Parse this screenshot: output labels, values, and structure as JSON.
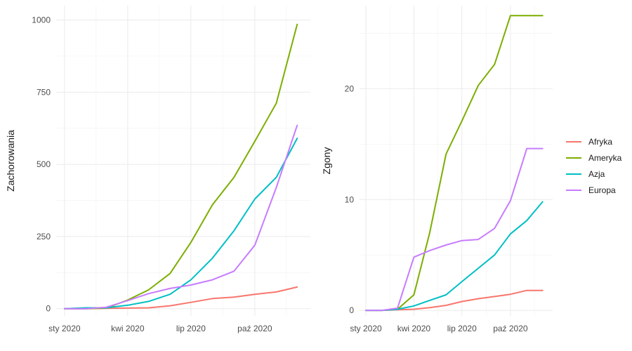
{
  "chart_data": [
    {
      "type": "line",
      "ylabel": "Zachorowania",
      "xlabel": "",
      "x_dates": [
        "2020-01-01",
        "2020-02-01",
        "2020-03-01",
        "2020-04-01",
        "2020-05-01",
        "2020-06-01",
        "2020-07-01",
        "2020-08-01",
        "2020-09-01",
        "2020-10-01",
        "2020-11-01",
        "2020-12-01"
      ],
      "x_ticks": [
        {
          "date": "2020-01-01",
          "label": "sty 2020"
        },
        {
          "date": "2020-04-01",
          "label": "kwi 2020"
        },
        {
          "date": "2020-07-01",
          "label": "lip 2020"
        },
        {
          "date": "2020-10-01",
          "label": "paź 2020"
        }
      ],
      "y_ticks": [
        0,
        250,
        500,
        750,
        1000
      ],
      "ylim": [
        -25,
        1050
      ],
      "grid": true,
      "series": [
        {
          "name": "Afryka",
          "values": [
            0,
            0,
            1,
            2,
            3,
            10,
            22,
            35,
            40,
            50,
            58,
            75
          ]
        },
        {
          "name": "Ameryka",
          "values": [
            0,
            0,
            2,
            30,
            65,
            122,
            230,
            360,
            455,
            580,
            712,
            985
          ]
        },
        {
          "name": "Azja",
          "values": [
            0,
            3,
            3,
            12,
            25,
            50,
            100,
            175,
            270,
            380,
            455,
            590
          ]
        },
        {
          "name": "Europa",
          "values": [
            0,
            0,
            5,
            28,
            52,
            70,
            82,
            100,
            130,
            220,
            420,
            635
          ]
        }
      ]
    },
    {
      "type": "line",
      "ylabel": "Zgony",
      "xlabel": "",
      "x_dates": [
        "2020-01-01",
        "2020-02-01",
        "2020-03-01",
        "2020-04-01",
        "2020-05-01",
        "2020-06-01",
        "2020-07-01",
        "2020-08-01",
        "2020-09-01",
        "2020-10-01",
        "2020-11-01",
        "2020-12-01"
      ],
      "x_ticks": [
        {
          "date": "2020-01-01",
          "label": "sty 2020"
        },
        {
          "date": "2020-04-01",
          "label": "kwi 2020"
        },
        {
          "date": "2020-07-01",
          "label": "lip 2020"
        },
        {
          "date": "2020-10-01",
          "label": "paź 2020"
        }
      ],
      "y_ticks": [
        0,
        10,
        20
      ],
      "ylim": [
        -0.5,
        27.5
      ],
      "grid": true,
      "series": [
        {
          "name": "Afryka",
          "values": [
            0,
            0,
            0.05,
            0.1,
            0.25,
            0.45,
            0.8,
            1.05,
            1.25,
            1.45,
            1.8,
            1.8
          ]
        },
        {
          "name": "Ameryka",
          "values": [
            0,
            0,
            0.1,
            1.4,
            7.0,
            14.1,
            17.1,
            20.3,
            22.2,
            26.6,
            26.6,
            26.6
          ]
        },
        {
          "name": "Azja",
          "values": [
            0,
            0,
            0.1,
            0.4,
            0.9,
            1.4,
            2.6,
            3.8,
            5.0,
            6.9,
            8.1,
            9.8
          ]
        },
        {
          "name": "Europa",
          "values": [
            0,
            0,
            0.2,
            4.8,
            5.4,
            5.9,
            6.3,
            6.4,
            7.4,
            9.9,
            14.6,
            14.6
          ]
        }
      ]
    }
  ],
  "legend": {
    "placement": "right",
    "items": [
      {
        "label": "Afryka",
        "color": "#F8766D"
      },
      {
        "label": "Ameryka",
        "color": "#7CAE00"
      },
      {
        "label": "Azja",
        "color": "#00BFC4"
      },
      {
        "label": "Europa",
        "color": "#C77CFF"
      }
    ]
  },
  "colors": {
    "Afryka": "#F8766D",
    "Ameryka": "#7CAE00",
    "Azja": "#00BFC4",
    "Europa": "#C77CFF",
    "grid": "#EBEBEB"
  }
}
